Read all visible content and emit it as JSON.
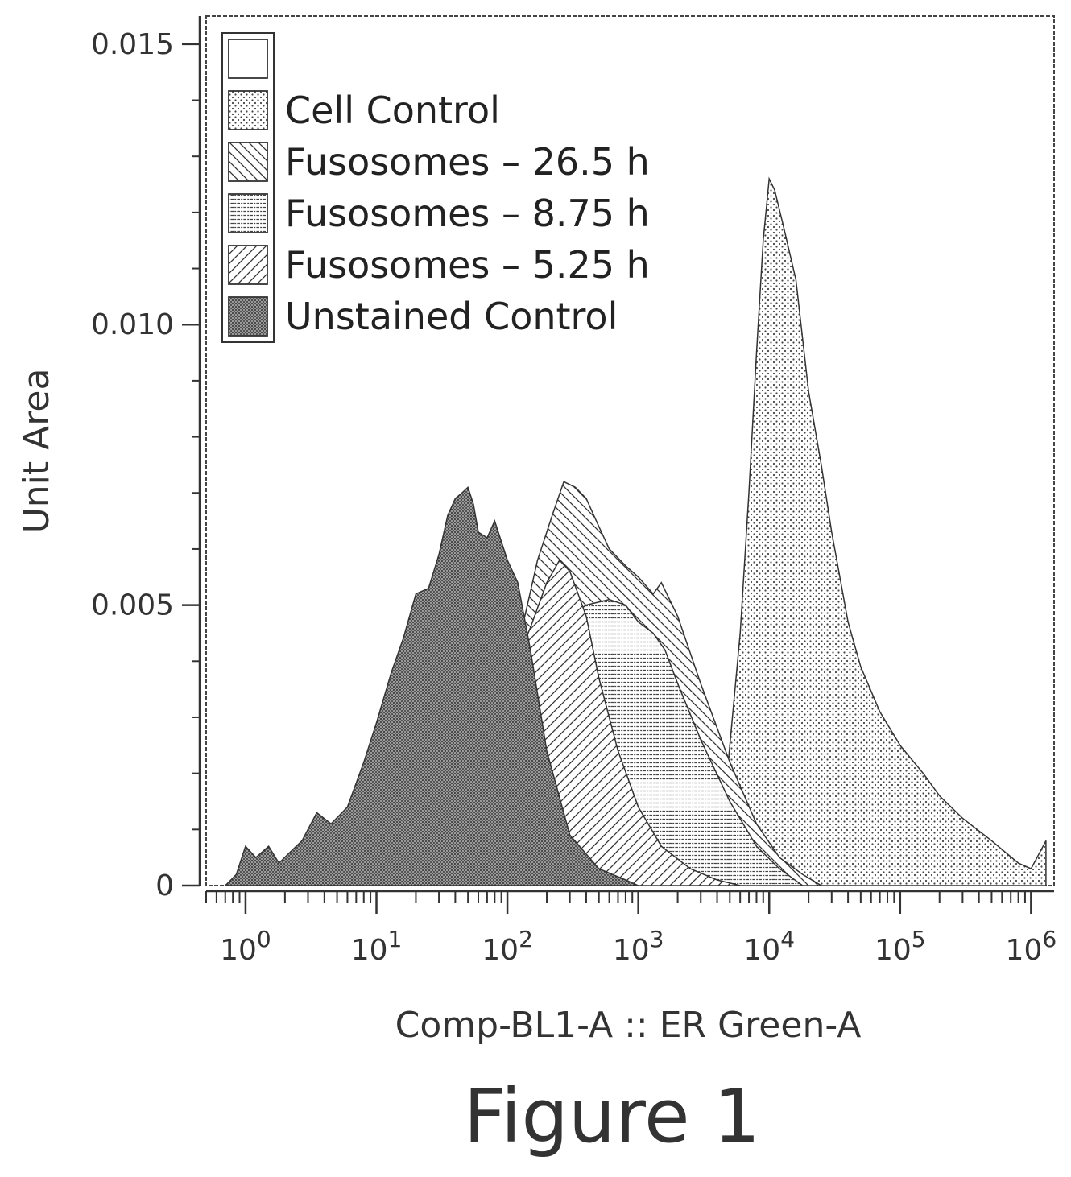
{
  "caption": "Figure 1",
  "chart_data": {
    "type": "area",
    "title": "",
    "xlabel": "Comp-BL1-A :: ER Green-A",
    "ylabel": "Unit Area",
    "x_scale": "log",
    "xlim": [
      0.5,
      1500000
    ],
    "ylim": [
      0,
      0.0155
    ],
    "x_ticks": [
      {
        "value": 1,
        "base": "10",
        "exp": "0"
      },
      {
        "value": 10,
        "base": "10",
        "exp": "1"
      },
      {
        "value": 100,
        "base": "10",
        "exp": "2"
      },
      {
        "value": 1000,
        "base": "10",
        "exp": "3"
      },
      {
        "value": 10000,
        "base": "10",
        "exp": "4"
      },
      {
        "value": 100000,
        "base": "10",
        "exp": "5"
      },
      {
        "value": 1000000,
        "base": "10",
        "exp": "6"
      }
    ],
    "y_ticks": [
      {
        "value": 0,
        "label": "0"
      },
      {
        "value": 0.005,
        "label": "0.005"
      },
      {
        "value": 0.01,
        "label": "0.010"
      },
      {
        "value": 0.015,
        "label": "0.015"
      }
    ],
    "grid": false,
    "legend_position": "top-left",
    "legend": [
      {
        "name": "",
        "pattern": "none"
      },
      {
        "name": "Cell Control",
        "pattern": "dots"
      },
      {
        "name": "Fusosomes – 26.5 h",
        "pattern": "diag-back"
      },
      {
        "name": "Fusosomes – 8.75 h",
        "pattern": "horiz"
      },
      {
        "name": "Fusosomes – 5.25 h",
        "pattern": "diag-fwd"
      },
      {
        "name": "Unstained Control",
        "pattern": "dense"
      }
    ],
    "series": [
      {
        "name": "Cell Control",
        "pattern": "dots",
        "x": [
          4000,
          5000,
          6000,
          7000,
          8000,
          9000,
          10000,
          11000,
          13000,
          16000,
          20000,
          25000,
          30000,
          40000,
          50000,
          70000,
          100000,
          150000,
          200000,
          300000,
          500000,
          800000,
          1000000,
          1300000
        ],
        "y": [
          0,
          0.0025,
          0.0045,
          0.007,
          0.0095,
          0.0115,
          0.0126,
          0.0124,
          0.0117,
          0.0108,
          0.0088,
          0.0075,
          0.0063,
          0.0047,
          0.0039,
          0.0031,
          0.0025,
          0.002,
          0.0016,
          0.0012,
          0.0008,
          0.0004,
          0.0003,
          0.0008
        ]
      },
      {
        "name": "Fusosomes – 26.5 h",
        "pattern": "diag-back",
        "x": [
          20,
          30,
          50,
          70,
          100,
          130,
          170,
          220,
          270,
          330,
          400,
          500,
          600,
          800,
          1000,
          1300,
          1500,
          2000,
          3000,
          5000,
          8000,
          12000,
          18000,
          25000
        ],
        "y": [
          0,
          0.0003,
          0.0012,
          0.0022,
          0.0035,
          0.0046,
          0.0058,
          0.0066,
          0.0072,
          0.0071,
          0.0069,
          0.0064,
          0.006,
          0.0057,
          0.0055,
          0.0052,
          0.0054,
          0.0048,
          0.0036,
          0.0022,
          0.0011,
          0.0005,
          0.0002,
          0
        ]
      },
      {
        "name": "Fusosomes – 8.75 h",
        "pattern": "horiz",
        "x": [
          15,
          25,
          40,
          70,
          100,
          150,
          200,
          300,
          400,
          600,
          800,
          1000,
          1300,
          1600,
          2000,
          3000,
          5000,
          8000,
          12000,
          18000
        ],
        "y": [
          0,
          0.0003,
          0.0009,
          0.0019,
          0.0027,
          0.0037,
          0.0043,
          0.0048,
          0.005,
          0.0051,
          0.005,
          0.0047,
          0.0045,
          0.0042,
          0.0036,
          0.0026,
          0.0015,
          0.0007,
          0.0003,
          0
        ]
      },
      {
        "name": "Fusosomes – 5.25 h",
        "pattern": "diag-fwd",
        "x": [
          12,
          20,
          30,
          50,
          70,
          100,
          150,
          200,
          250,
          300,
          400,
          500,
          700,
          1000,
          1500,
          2500,
          4000,
          6000
        ],
        "y": [
          0,
          0.0004,
          0.0009,
          0.0018,
          0.0027,
          0.0036,
          0.0046,
          0.0054,
          0.0058,
          0.0056,
          0.0048,
          0.0037,
          0.0024,
          0.0014,
          0.0007,
          0.0003,
          0.0001,
          0
        ]
      },
      {
        "name": "Unstained Control",
        "pattern": "dense",
        "x": [
          0.7,
          0.85,
          1,
          1.2,
          1.5,
          1.8,
          2.2,
          2.7,
          3.5,
          4.5,
          6,
          8,
          10,
          13,
          16,
          20,
          25,
          30,
          35,
          40,
          45,
          50,
          55,
          60,
          70,
          80,
          100,
          120,
          150,
          200,
          300,
          500,
          800,
          1000
        ],
        "y": [
          0,
          0.0002,
          0.0007,
          0.0005,
          0.0007,
          0.0004,
          0.0006,
          0.0008,
          0.0013,
          0.0011,
          0.0014,
          0.0022,
          0.0029,
          0.0038,
          0.0044,
          0.0052,
          0.0053,
          0.0059,
          0.0066,
          0.0069,
          0.007,
          0.0071,
          0.0068,
          0.0063,
          0.0062,
          0.0065,
          0.0058,
          0.0054,
          0.0042,
          0.0024,
          0.0009,
          0.0003,
          0.0001,
          0
        ]
      }
    ]
  }
}
